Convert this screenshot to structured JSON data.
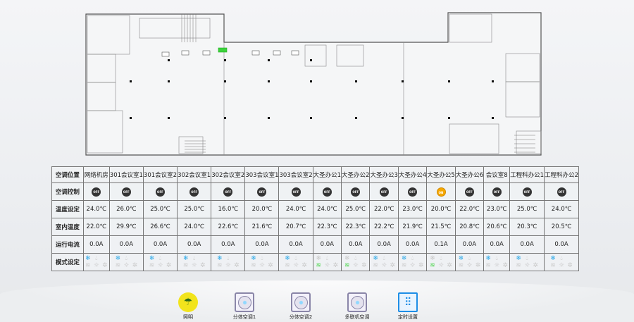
{
  "table": {
    "row_headers": [
      "空调位置",
      "空调控制",
      "温度设定",
      "室内温度",
      "运行电流",
      "模式设定"
    ],
    "columns": [
      {
        "name": "网络机房",
        "state": "OFF",
        "set": "24.0℃",
        "room": "22.0℃",
        "current": "0.0A",
        "mode": "cool"
      },
      {
        "name": "301会议室1",
        "state": "OFF",
        "set": "26.0℃",
        "room": "29.9℃",
        "current": "0.0A",
        "mode": "cool"
      },
      {
        "name": "301会议室2",
        "state": "OFF",
        "set": "25.0℃",
        "room": "26.6℃",
        "current": "0.0A",
        "mode": "cool"
      },
      {
        "name": "302会议室1",
        "state": "OFF",
        "set": "25.0℃",
        "room": "24.0℃",
        "current": "0.0A",
        "mode": "cool"
      },
      {
        "name": "302会议室2",
        "state": "OFF",
        "set": "16.0℃",
        "room": "22.6℃",
        "current": "0.0A",
        "mode": "cool"
      },
      {
        "name": "303会议室1",
        "state": "OFF",
        "set": "20.0℃",
        "room": "21.6℃",
        "current": "0.0A",
        "mode": "cool"
      },
      {
        "name": "303会议室2",
        "state": "OFF",
        "set": "24.0℃",
        "room": "20.7℃",
        "current": "0.0A",
        "mode": "cool"
      },
      {
        "name": "大圣办公1",
        "state": "OFF",
        "set": "24.0℃",
        "room": "22.3℃",
        "current": "0.0A",
        "mode": "fan"
      },
      {
        "name": "大圣办公2",
        "state": "OFF",
        "set": "25.0℃",
        "room": "22.3℃",
        "current": "0.0A",
        "mode": "fan"
      },
      {
        "name": "大圣办公3",
        "state": "OFF",
        "set": "22.0℃",
        "room": "22.2℃",
        "current": "0.0A",
        "mode": "cool"
      },
      {
        "name": "大圣办公4",
        "state": "OFF",
        "set": "23.0℃",
        "room": "21.9℃",
        "current": "0.0A",
        "mode": "cool"
      },
      {
        "name": "大圣办公5",
        "state": "ON",
        "set": "20.0℃",
        "room": "21.5℃",
        "current": "0.1A",
        "mode": "fan"
      },
      {
        "name": "大圣办公6",
        "state": "OFF",
        "set": "22.0℃",
        "room": "20.8℃",
        "current": "0.0A",
        "mode": "cool"
      },
      {
        "name": "会议室8",
        "state": "OFF",
        "set": "23.0℃",
        "room": "20.6℃",
        "current": "0.0A",
        "mode": "cool"
      },
      {
        "name": "工程科办公1",
        "state": "OFF",
        "set": "25.0℃",
        "room": "20.3℃",
        "current": "0.0A",
        "mode": "cool"
      },
      {
        "name": "工程科办公2",
        "state": "OFF",
        "set": "24.0℃",
        "room": "20.5℃",
        "current": "0.0A",
        "mode": "cool"
      }
    ]
  },
  "colors": {
    "on": "#f5a800",
    "off": "#333333",
    "cool_active": "#2aa8e8",
    "fan_active": "#3cd23c"
  },
  "bottom_nav": [
    {
      "label": "照明",
      "icon": "lighting-icon"
    },
    {
      "label": "分体空调1",
      "icon": "split-ac-icon"
    },
    {
      "label": "分体空调2",
      "icon": "split-ac-icon"
    },
    {
      "label": "多联机空调",
      "icon": "multi-ac-icon"
    },
    {
      "label": "定时设置",
      "icon": "timer-settings-icon"
    }
  ]
}
